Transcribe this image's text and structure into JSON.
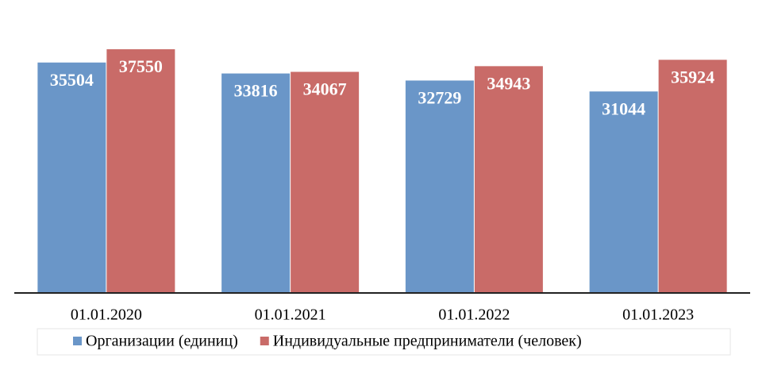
{
  "chart_data": {
    "type": "bar",
    "categories": [
      "01.01.2020",
      "01.01.2021",
      "01.01.2022",
      "01.01.2023"
    ],
    "series": [
      {
        "name": "Организации (единиц)",
        "color": "#6a96c8",
        "values": [
          35504,
          33816,
          32729,
          31044
        ]
      },
      {
        "name": "Индивидуальные предприниматели (человек)",
        "color": "#c96b68",
        "values": [
          37550,
          34067,
          34943,
          35924
        ]
      }
    ],
    "ylim": [
      0,
      40000
    ],
    "grid": false,
    "legend": "bottom"
  }
}
